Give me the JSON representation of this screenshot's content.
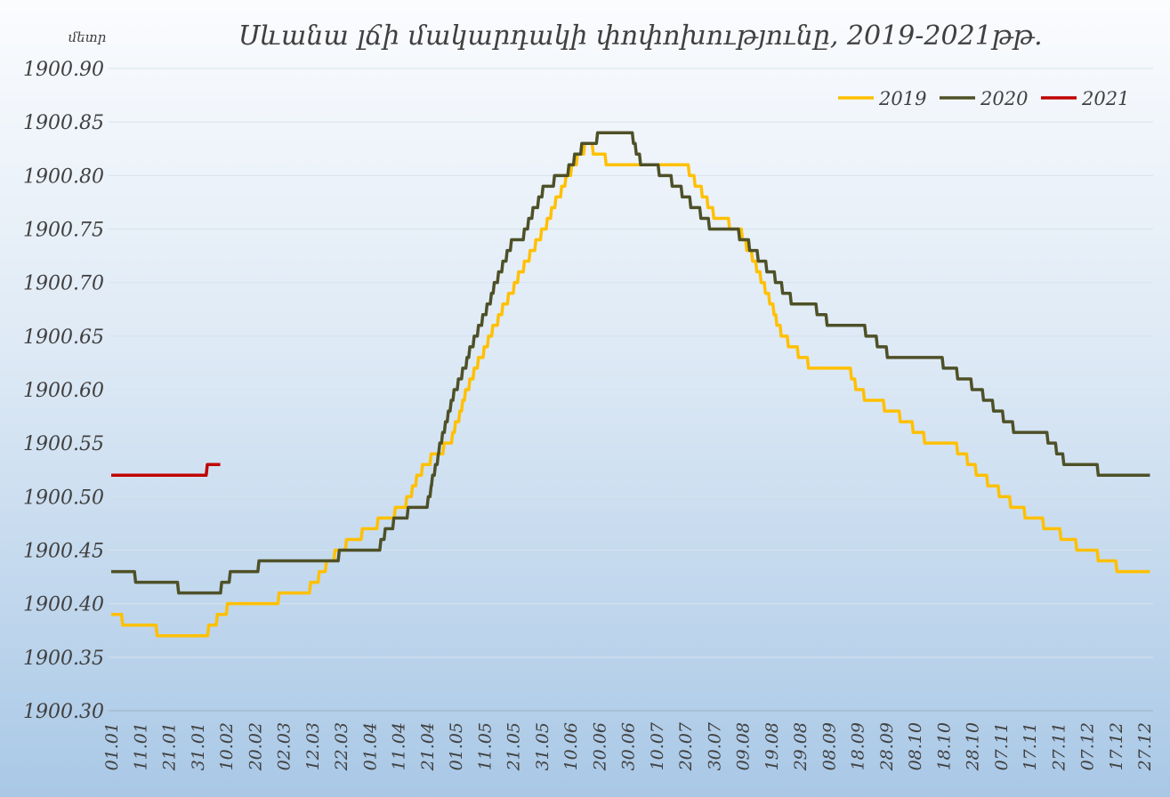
{
  "chart_data": {
    "type": "line",
    "title": "Սևանա լճի մակարդակի փոփոխությունը, 2019-2021թթ.",
    "ylabel": "մետր",
    "xlabel": "",
    "ylim": [
      1900.3,
      1900.9
    ],
    "ystep": 0.05,
    "yticks": [
      "1900.90",
      "1900.85",
      "1900.80",
      "1900.75",
      "1900.70",
      "1900.65",
      "1900.60",
      "1900.55",
      "1900.50",
      "1900.45",
      "1900.40",
      "1900.35",
      "1900.30"
    ],
    "xlim_days": [
      0,
      362
    ],
    "xticks": [
      "01.01",
      "11.01",
      "21.01",
      "31.01",
      "10.02",
      "20.02",
      "02.03",
      "12.03",
      "22.03",
      "01.04",
      "11.04",
      "21.04",
      "01.05",
      "11.05",
      "21.05",
      "31.05",
      "10.06",
      "20.06",
      "30.06",
      "10.07",
      "20.07",
      "30.07",
      "09.08",
      "19.08",
      "29.08",
      "08.09",
      "18.09",
      "28.09",
      "08.10",
      "18.10",
      "28.10",
      "07.11",
      "17.11",
      "27.11",
      "07.12",
      "17.12",
      "27.12"
    ],
    "grid": true,
    "legend_position": "top-right",
    "series": [
      {
        "name": "2019",
        "color": "#FFC000",
        "points_day_value": [
          [
            0,
            1900.39
          ],
          [
            3.9,
            1900.39
          ],
          [
            4,
            1900.38
          ],
          [
            15.5,
            1900.38
          ],
          [
            15.6,
            1900.37
          ],
          [
            32,
            1900.37
          ],
          [
            42,
            1900.4
          ],
          [
            58,
            1900.4
          ],
          [
            59,
            1900.41
          ],
          [
            68,
            1900.41
          ],
          [
            79,
            1900.45
          ],
          [
            90,
            1900.47
          ],
          [
            96,
            1900.48
          ],
          [
            102,
            1900.49
          ],
          [
            109,
            1900.53
          ],
          [
            118,
            1900.55
          ],
          [
            124,
            1900.6
          ],
          [
            132,
            1900.65
          ],
          [
            141,
            1900.7
          ],
          [
            151,
            1900.75
          ],
          [
            159,
            1900.8
          ],
          [
            166,
            1900.83
          ],
          [
            170,
            1900.82
          ],
          [
            174,
            1900.81
          ],
          [
            200,
            1900.81
          ],
          [
            211,
            1900.76
          ],
          [
            219,
            1900.75
          ],
          [
            227,
            1900.7
          ],
          [
            234,
            1900.65
          ],
          [
            241,
            1900.63
          ],
          [
            244,
            1900.62
          ],
          [
            257,
            1900.62
          ],
          [
            260,
            1900.6
          ],
          [
            265,
            1900.59
          ],
          [
            273,
            1900.58
          ],
          [
            281,
            1900.56
          ],
          [
            286,
            1900.55
          ],
          [
            293,
            1900.55
          ],
          [
            303,
            1900.52
          ],
          [
            311,
            1900.5
          ],
          [
            315,
            1900.49
          ],
          [
            321,
            1900.48
          ],
          [
            328,
            1900.47
          ],
          [
            333,
            1900.46
          ],
          [
            339,
            1900.45
          ],
          [
            348,
            1900.44
          ],
          [
            352,
            1900.43
          ],
          [
            362,
            1900.43
          ]
        ]
      },
      {
        "name": "2020",
        "color": "#4E5027",
        "points_day_value": [
          [
            0,
            1900.43
          ],
          [
            8,
            1900.43
          ],
          [
            8.1,
            1900.42
          ],
          [
            23,
            1900.42
          ],
          [
            23.1,
            1900.41
          ],
          [
            38,
            1900.41
          ],
          [
            39,
            1900.42
          ],
          [
            41,
            1900.42
          ],
          [
            42,
            1900.43
          ],
          [
            51,
            1900.43
          ],
          [
            52,
            1900.44
          ],
          [
            79,
            1900.44
          ],
          [
            80,
            1900.45
          ],
          [
            93,
            1900.45
          ],
          [
            96,
            1900.47
          ],
          [
            106,
            1900.49
          ],
          [
            110,
            1900.49
          ],
          [
            115.5,
            1900.56
          ],
          [
            120,
            1900.6
          ],
          [
            130,
            1900.67
          ],
          [
            137,
            1900.72
          ],
          [
            140,
            1900.74
          ],
          [
            143,
            1900.74
          ],
          [
            151,
            1900.79
          ],
          [
            158,
            1900.8
          ],
          [
            165,
            1900.83
          ],
          [
            169,
            1900.83
          ],
          [
            170,
            1900.84
          ],
          [
            181,
            1900.84
          ],
          [
            185,
            1900.81
          ],
          [
            189,
            1900.81
          ],
          [
            197,
            1900.79
          ],
          [
            210,
            1900.75
          ],
          [
            217,
            1900.75
          ],
          [
            227,
            1900.72
          ],
          [
            238,
            1900.68
          ],
          [
            244,
            1900.68
          ],
          [
            251,
            1900.66
          ],
          [
            261,
            1900.66
          ],
          [
            272,
            1900.63
          ],
          [
            287,
            1900.63
          ],
          [
            302,
            1900.6
          ],
          [
            316,
            1900.56
          ],
          [
            325,
            1900.56
          ],
          [
            333,
            1900.53
          ],
          [
            343,
            1900.53
          ],
          [
            344,
            1900.52
          ],
          [
            362,
            1900.52
          ]
        ]
      },
      {
        "name": "2021",
        "color": "#C00000",
        "points_day_value": [
          [
            0,
            1900.52
          ],
          [
            33,
            1900.52
          ],
          [
            34,
            1900.53
          ],
          [
            38,
            1900.53
          ]
        ]
      }
    ]
  }
}
